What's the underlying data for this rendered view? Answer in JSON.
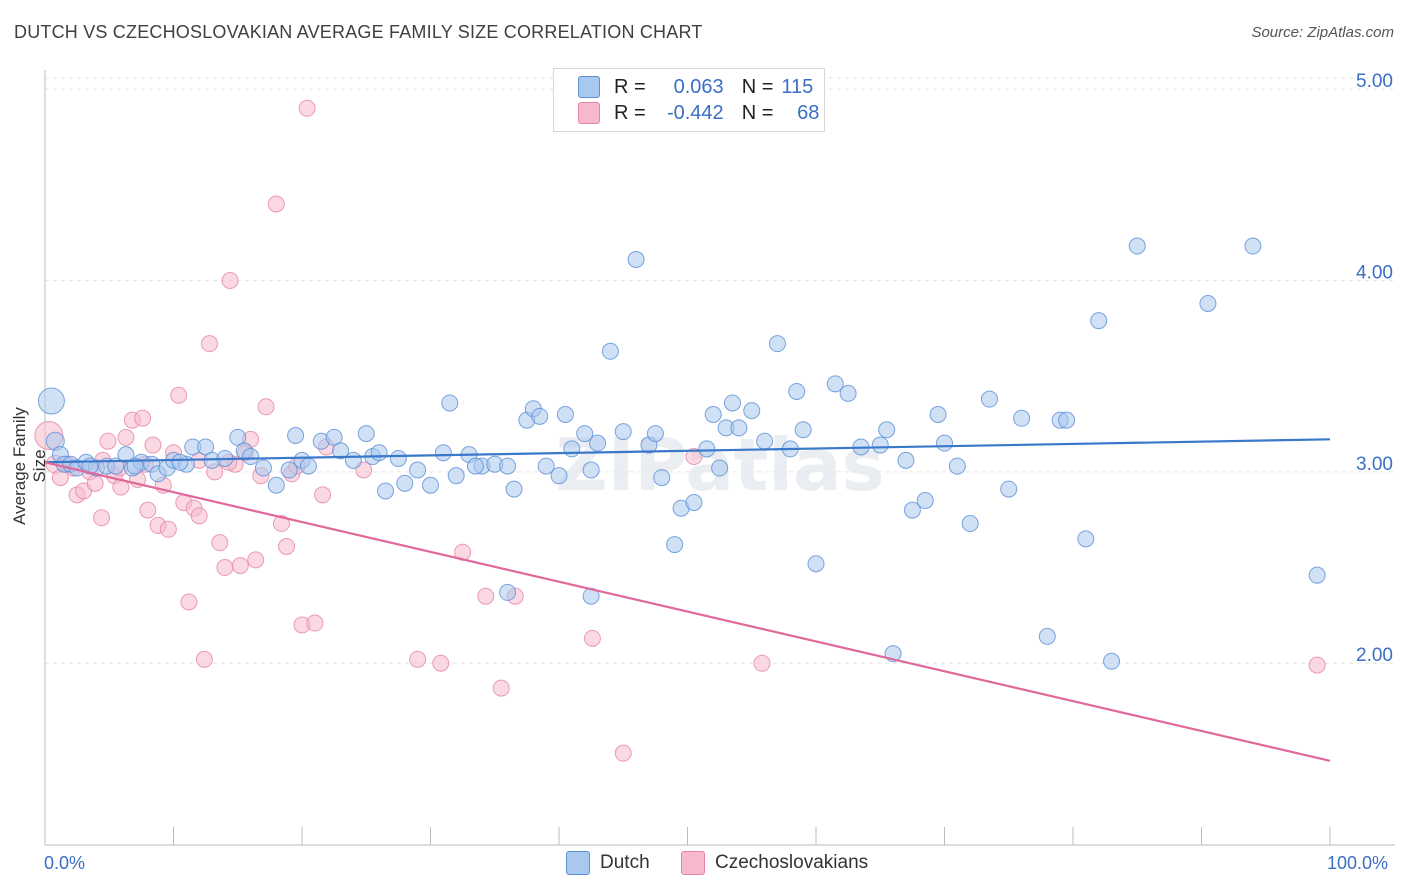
{
  "title": "DUTCH VS CZECHOSLOVAKIAN AVERAGE FAMILY SIZE CORRELATION CHART",
  "source": "Source: ZipAtlas.com",
  "watermark": "ZIPatlas",
  "legend": {
    "rows": [
      {
        "r_label": "R =",
        "r_value": "0.063",
        "n_label": "N =",
        "n_value": "115",
        "color": "#a9c8ef"
      },
      {
        "r_label": "R =",
        "r_value": "-0.442",
        "n_label": "N =",
        "n_value": "68",
        "color": "#f6b9cc"
      }
    ]
  },
  "bottom_legend": [
    {
      "label": "Dutch",
      "color": "#a9c8ef"
    },
    {
      "label": "Czechoslovakians",
      "color": "#f6b9cc"
    }
  ],
  "chart_data": {
    "type": "scatter",
    "xlabel": "",
    "ylabel": "Average Family Size",
    "x_tick_labels": [
      "0.0%",
      "100.0%"
    ],
    "y_ticks": [
      2.0,
      3.0,
      4.0,
      5.0
    ],
    "y_tick_labels": [
      "2.00",
      "3.00",
      "4.00",
      "5.00"
    ],
    "xlim": [
      0,
      100
    ],
    "ylim": [
      1.05,
      5.1
    ],
    "grid": true,
    "colors": {
      "dutch_fill": "#a9c8ef",
      "dutch_stroke": "#5b8fd6",
      "dutch_line": "#3a78c9",
      "czech_fill": "#f6b9cc",
      "czech_stroke": "#e784a6",
      "czech_line": "#e0689a"
    },
    "series": [
      {
        "name": "Dutch",
        "trend": [
          [
            0,
            3.05
          ],
          [
            100,
            3.17
          ]
        ],
        "points": [
          [
            0.5,
            3.37,
            13
          ],
          [
            0.8,
            3.16,
            9
          ],
          [
            1.2,
            3.09,
            8
          ],
          [
            1.5,
            3.04,
            8
          ],
          [
            2.0,
            3.04,
            8
          ],
          [
            2.5,
            3.02,
            8
          ],
          [
            3.2,
            3.05,
            8
          ],
          [
            4.0,
            3.02,
            8
          ],
          [
            4.8,
            3.03,
            8
          ],
          [
            5.5,
            3.03,
            8
          ],
          [
            6.3,
            3.09,
            8
          ],
          [
            6.8,
            3.02,
            8
          ],
          [
            7.5,
            3.05,
            8
          ],
          [
            8.3,
            3.04,
            8
          ],
          [
            8.8,
            2.99,
            8
          ],
          [
            9.5,
            3.02,
            8
          ],
          [
            10.0,
            3.06,
            8
          ],
          [
            11.0,
            3.04,
            8
          ],
          [
            11.5,
            3.13,
            8
          ],
          [
            12.5,
            3.13,
            8
          ],
          [
            13.0,
            3.06,
            8
          ],
          [
            14.0,
            3.07,
            8
          ],
          [
            15.0,
            3.18,
            8
          ],
          [
            15.5,
            3.11,
            8
          ],
          [
            16.0,
            3.08,
            8
          ],
          [
            17.0,
            3.02,
            8
          ],
          [
            18.0,
            2.93,
            8
          ],
          [
            19.0,
            3.01,
            8
          ],
          [
            19.5,
            3.19,
            8
          ],
          [
            20.0,
            3.06,
            8
          ],
          [
            21.5,
            3.16,
            8
          ],
          [
            22.5,
            3.18,
            8
          ],
          [
            23.0,
            3.11,
            8
          ],
          [
            24.0,
            3.06,
            8
          ],
          [
            25.0,
            3.2,
            8
          ],
          [
            25.5,
            3.08,
            8
          ],
          [
            26.5,
            2.9,
            8
          ],
          [
            27.5,
            3.07,
            8
          ],
          [
            28.0,
            2.94,
            8
          ],
          [
            29.0,
            3.01,
            8
          ],
          [
            30.0,
            2.93,
            8
          ],
          [
            31.0,
            3.1,
            8
          ],
          [
            31.5,
            3.36,
            8
          ],
          [
            32.0,
            2.98,
            8
          ],
          [
            33.0,
            3.09,
            8
          ],
          [
            34.0,
            3.03,
            8
          ],
          [
            35.0,
            3.04,
            8
          ],
          [
            36.0,
            3.03,
            8
          ],
          [
            36.5,
            2.91,
            8
          ],
          [
            37.5,
            3.27,
            8
          ],
          [
            38.0,
            3.33,
            8
          ],
          [
            38.5,
            3.29,
            8
          ],
          [
            39.0,
            3.03,
            8
          ],
          [
            40.0,
            2.98,
            8
          ],
          [
            40.5,
            3.3,
            8
          ],
          [
            41.0,
            3.12,
            8
          ],
          [
            42.0,
            3.2,
            8
          ],
          [
            42.5,
            3.01,
            8
          ],
          [
            43.0,
            3.15,
            8
          ],
          [
            44.0,
            3.63,
            8
          ],
          [
            45.0,
            3.21,
            8
          ],
          [
            46.0,
            4.11,
            8
          ],
          [
            47.0,
            3.14,
            8
          ],
          [
            47.5,
            3.2,
            8
          ],
          [
            48.0,
            2.97,
            8
          ],
          [
            49.0,
            2.62,
            8
          ],
          [
            49.5,
            2.81,
            8
          ],
          [
            50.5,
            2.84,
            8
          ],
          [
            51.5,
            3.12,
            8
          ],
          [
            52.0,
            3.3,
            8
          ],
          [
            52.5,
            3.02,
            8
          ],
          [
            53.0,
            3.23,
            8
          ],
          [
            53.5,
            3.36,
            8
          ],
          [
            54.0,
            3.23,
            8
          ],
          [
            55.0,
            3.32,
            8
          ],
          [
            56.0,
            3.16,
            8
          ],
          [
            57.0,
            3.67,
            8
          ],
          [
            58.0,
            3.12,
            8
          ],
          [
            58.5,
            3.42,
            8
          ],
          [
            59.0,
            3.22,
            8
          ],
          [
            60.0,
            2.52,
            8
          ],
          [
            61.5,
            3.46,
            8
          ],
          [
            62.5,
            3.41,
            8
          ],
          [
            63.5,
            3.13,
            8
          ],
          [
            65.0,
            3.14,
            8
          ],
          [
            65.5,
            3.22,
            8
          ],
          [
            66.0,
            2.05,
            8
          ],
          [
            67.0,
            3.06,
            8
          ],
          [
            67.5,
            2.8,
            8
          ],
          [
            68.5,
            2.85,
            8
          ],
          [
            69.5,
            3.3,
            8
          ],
          [
            70.0,
            3.15,
            8
          ],
          [
            71.0,
            3.03,
            8
          ],
          [
            72.0,
            2.73,
            8
          ],
          [
            73.5,
            3.38,
            8
          ],
          [
            75.0,
            2.91,
            8
          ],
          [
            76.0,
            3.28,
            8
          ],
          [
            78.0,
            2.14,
            8
          ],
          [
            79.0,
            3.27,
            8
          ],
          [
            79.5,
            3.27,
            8
          ],
          [
            81.0,
            2.65,
            8
          ],
          [
            82.0,
            3.79,
            8
          ],
          [
            83.0,
            2.01,
            8
          ],
          [
            85.0,
            4.18,
            8
          ],
          [
            90.5,
            3.88,
            8
          ],
          [
            94.0,
            4.18,
            8
          ],
          [
            99.0,
            2.46,
            8
          ],
          [
            36.0,
            2.37,
            8
          ],
          [
            42.5,
            2.35,
            8
          ],
          [
            33.5,
            3.03,
            8
          ],
          [
            26.0,
            3.1,
            8
          ],
          [
            20.5,
            3.03,
            8
          ],
          [
            10.5,
            3.05,
            8
          ],
          [
            7.0,
            3.03,
            8
          ],
          [
            3.5,
            3.03,
            8
          ]
        ]
      },
      {
        "name": "Czechoslovakians",
        "trend": [
          [
            0,
            3.05
          ],
          [
            100,
            1.49
          ]
        ],
        "points": [
          [
            0.3,
            3.19,
            14
          ],
          [
            0.8,
            3.04,
            9
          ],
          [
            1.2,
            2.97,
            8
          ],
          [
            1.7,
            3.04,
            8
          ],
          [
            2.2,
            3.02,
            8
          ],
          [
            2.5,
            2.88,
            8
          ],
          [
            3.0,
            2.9,
            8
          ],
          [
            3.5,
            3.0,
            8
          ],
          [
            3.9,
            2.94,
            8
          ],
          [
            4.4,
            2.76,
            8
          ],
          [
            4.9,
            3.16,
            8
          ],
          [
            5.4,
            2.98,
            8
          ],
          [
            5.9,
            2.92,
            8
          ],
          [
            6.3,
            3.18,
            8
          ],
          [
            6.8,
            3.27,
            8
          ],
          [
            7.2,
            2.96,
            8
          ],
          [
            7.6,
            3.28,
            8
          ],
          [
            8.0,
            2.8,
            8
          ],
          [
            8.4,
            3.14,
            8
          ],
          [
            8.8,
            2.72,
            8
          ],
          [
            9.2,
            2.93,
            8
          ],
          [
            9.6,
            2.7,
            8
          ],
          [
            10.0,
            3.1,
            8
          ],
          [
            10.4,
            3.4,
            8
          ],
          [
            10.8,
            2.84,
            8
          ],
          [
            11.2,
            2.32,
            8
          ],
          [
            11.6,
            2.81,
            8
          ],
          [
            12.0,
            2.77,
            8
          ],
          [
            12.4,
            2.02,
            8
          ],
          [
            12.8,
            3.67,
            8
          ],
          [
            13.2,
            3.0,
            8
          ],
          [
            13.6,
            2.63,
            8
          ],
          [
            14.0,
            2.5,
            8
          ],
          [
            14.4,
            4.0,
            8
          ],
          [
            14.8,
            3.04,
            8
          ],
          [
            15.2,
            2.51,
            8
          ],
          [
            15.6,
            3.1,
            8
          ],
          [
            16.0,
            3.17,
            8
          ],
          [
            16.4,
            2.54,
            8
          ],
          [
            16.8,
            2.98,
            8
          ],
          [
            17.2,
            3.34,
            8
          ],
          [
            18.0,
            4.4,
            8
          ],
          [
            18.4,
            2.73,
            8
          ],
          [
            18.8,
            2.61,
            8
          ],
          [
            19.2,
            2.99,
            8
          ],
          [
            19.6,
            3.03,
            8
          ],
          [
            20.0,
            2.2,
            8
          ],
          [
            20.4,
            4.9,
            8
          ],
          [
            21.0,
            2.21,
            8
          ],
          [
            21.6,
            2.88,
            8
          ],
          [
            21.9,
            3.13,
            8
          ],
          [
            24.8,
            3.01,
            8
          ],
          [
            29.0,
            2.02,
            8
          ],
          [
            30.8,
            2.0,
            8
          ],
          [
            32.5,
            2.58,
            8
          ],
          [
            34.3,
            2.35,
            8
          ],
          [
            35.5,
            1.87,
            8
          ],
          [
            36.6,
            2.35,
            8
          ],
          [
            42.6,
            2.13,
            8
          ],
          [
            45.0,
            1.53,
            8
          ],
          [
            50.5,
            3.08,
            8
          ],
          [
            55.8,
            2.0,
            8
          ],
          [
            99.0,
            1.99,
            8
          ],
          [
            4.5,
            3.06,
            8
          ],
          [
            5.8,
            3.02,
            8
          ],
          [
            7.8,
            3.04,
            8
          ],
          [
            12.0,
            3.06,
            8
          ],
          [
            14.3,
            3.05,
            8
          ]
        ]
      }
    ]
  }
}
